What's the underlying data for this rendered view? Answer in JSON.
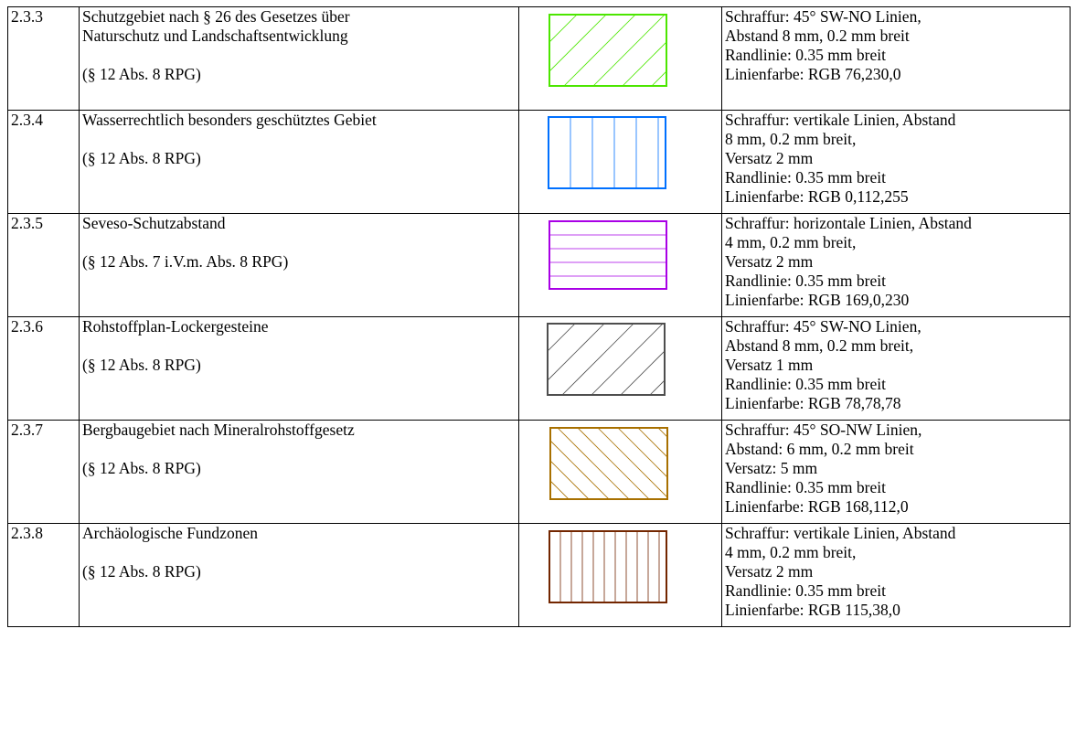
{
  "rows": [
    {
      "number": "2.3.3",
      "label": [
        "Schutzgebiet nach § 26 des Gesetzes über",
        "Naturschutz und Landschaftsentwicklung"
      ],
      "reference": "(§ 12 Abs. 8 RPG)",
      "symbol": {
        "pattern": "diagonal-sw-ne",
        "color": "#4CE600"
      },
      "spec": [
        "Schraffur: 45° SW-NO Linien,",
        "Abstand 8 mm, 0.2 mm breit",
        "Randlinie: 0.35 mm breit",
        "Linienfarbe: RGB 76,230,0"
      ]
    },
    {
      "number": "2.3.4",
      "label": [
        "Wasserrechtlich besonders geschütztes Gebiet"
      ],
      "reference": "(§ 12 Abs. 8 RPG)",
      "symbol": {
        "pattern": "vertical",
        "color": "#0070FF"
      },
      "spec": [
        "Schraffur: vertikale Linien, Abstand",
        "8 mm, 0.2 mm breit,",
        "Versatz 2 mm",
        "Randlinie: 0.35 mm breit",
        "Linienfarbe: RGB 0,112,255"
      ]
    },
    {
      "number": "2.3.5",
      "label": [
        "Seveso-Schutzabstand"
      ],
      "reference": "(§ 12 Abs. 7 i.V.m. Abs. 8 RPG)",
      "symbol": {
        "pattern": "horizontal",
        "color": "#A900E6"
      },
      "spec": [
        "Schraffur: horizontale Linien, Abstand",
        "4 mm, 0.2 mm breit,",
        "Versatz 2 mm",
        "Randlinie: 0.35 mm breit",
        "Linienfarbe: RGB 169,0,230"
      ]
    },
    {
      "number": "2.3.6",
      "label": [
        "Rohstoffplan-Lockergesteine"
      ],
      "reference": "(§ 12 Abs. 8 RPG)",
      "symbol": {
        "pattern": "diagonal-sw-ne",
        "color": "#4E4E4E"
      },
      "spec": [
        "Schraffur: 45° SW-NO Linien,",
        "Abstand 8 mm, 0.2 mm breit,",
        "Versatz 1 mm",
        "Randlinie: 0.35 mm breit",
        "Linienfarbe: RGB 78,78,78"
      ]
    },
    {
      "number": "2.3.7",
      "label": [
        "Bergbaugebiet nach Mineralrohstoffgesetz"
      ],
      "reference": "(§ 12 Abs. 8 RPG)",
      "symbol": {
        "pattern": "diagonal-se-nw",
        "color": "#A87000"
      },
      "spec": [
        "Schraffur: 45° SO-NW Linien,",
        "Abstand: 6 mm, 0.2 mm breit",
        "Versatz: 5 mm",
        "Randlinie: 0.35 mm breit",
        "Linienfarbe: RGB 168,112,0"
      ]
    },
    {
      "number": "2.3.8",
      "label": [
        "Archäologische Fundzonen"
      ],
      "reference": "(§ 12 Abs. 8 RPG)",
      "symbol": {
        "pattern": "vertical-dense",
        "color": "#732600"
      },
      "spec": [
        "Schraffur: vertikale Linien, Abstand",
        "4 mm, 0.2 mm breit,",
        "Versatz 2 mm",
        "Randlinie: 0.35 mm breit",
        "Linienfarbe: RGB 115,38,0"
      ]
    }
  ]
}
